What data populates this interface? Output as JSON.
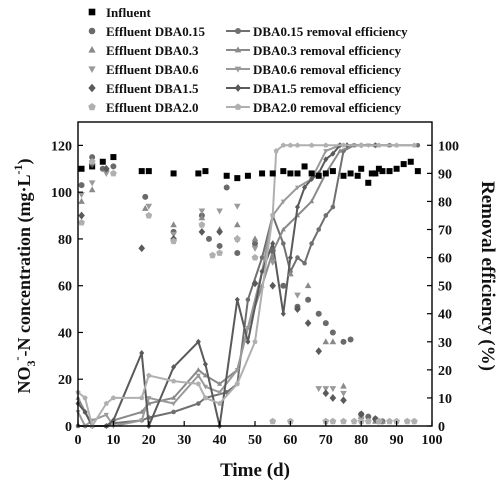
{
  "chart_data": {
    "type": "scatter",
    "title": "",
    "xlabel": "Time (d)",
    "ylabel": "NO3−-N concentration (mg·L−1)",
    "ylabel_parts": {
      "main": "NO",
      "sub1": "3",
      "sup": "-",
      "rest": "-N concentration (mg·L",
      "sup2": "-1",
      "close": ")"
    },
    "y2label": "Removal efficiency (%)",
    "xlim": [
      0,
      100
    ],
    "ylim": [
      0,
      130
    ],
    "y2lim": [
      0,
      108.3
    ],
    "xticks": [
      0,
      10,
      20,
      30,
      40,
      50,
      60,
      70,
      80,
      90,
      100
    ],
    "yticks": [
      0,
      20,
      40,
      60,
      80,
      100,
      120
    ],
    "y2ticks": [
      0,
      10,
      20,
      30,
      40,
      50,
      60,
      70,
      80,
      90,
      100
    ],
    "grid": false,
    "legend_position": "top-left",
    "series": [
      {
        "name": "Influent",
        "axis": "left",
        "kind": "scatter",
        "marker": "square",
        "color": "#000000",
        "x": [
          1,
          4,
          7,
          10,
          18,
          20,
          27,
          34,
          36,
          42,
          45,
          48,
          52,
          55,
          58,
          60,
          62,
          64,
          66,
          68,
          70,
          72,
          75,
          77,
          79,
          80,
          82,
          83,
          84,
          85,
          86,
          88,
          90,
          92,
          94,
          96
        ],
        "y": [
          110,
          111,
          113,
          115,
          109,
          109,
          108,
          108,
          109,
          107,
          106,
          107,
          108,
          108,
          109,
          108,
          108,
          111,
          108,
          107,
          108,
          109,
          107,
          108,
          107,
          110,
          104,
          108,
          108,
          110,
          109,
          109,
          110,
          112,
          113,
          109
        ]
      },
      {
        "name": "Effluent DBA0.15",
        "axis": "left",
        "kind": "scatter",
        "marker": "circle",
        "color": "#6a6a6a",
        "x": [
          1,
          4,
          7,
          10,
          19,
          27,
          35,
          37,
          40,
          42,
          45,
          50,
          55,
          58,
          62,
          65,
          68,
          70,
          72,
          75,
          77,
          80,
          82,
          84,
          86
        ],
        "y": [
          103,
          115,
          110,
          111,
          98,
          83,
          90,
          80,
          77,
          102,
          74,
          78,
          75,
          60,
          51,
          54,
          48,
          44,
          40,
          36,
          37,
          5,
          4,
          3,
          2
        ]
      },
      {
        "name": "Effluent DBA0.3",
        "axis": "left",
        "kind": "scatter",
        "marker": "triangle-up",
        "color": "#8a8a8a",
        "x": [
          1,
          4,
          8,
          19,
          27,
          35,
          40,
          45,
          50,
          55,
          60,
          65,
          70,
          72,
          75,
          80,
          84,
          86
        ],
        "y": [
          96,
          101,
          110,
          93,
          86,
          89,
          84,
          86,
          80,
          72,
          65,
          60,
          36,
          36,
          17,
          4,
          2,
          2
        ]
      },
      {
        "name": "Effluent DBA0.6",
        "axis": "left",
        "kind": "scatter",
        "marker": "triangle-down",
        "color": "#9a9a9a",
        "x": [
          1,
          4,
          8,
          20,
          27,
          35,
          40,
          45,
          50,
          55,
          62,
          68,
          70,
          72,
          75,
          80,
          85
        ],
        "y": [
          99,
          104,
          108,
          94,
          82,
          92,
          92,
          94,
          76,
          70,
          56,
          16,
          16,
          16,
          14,
          3,
          2
        ]
      },
      {
        "name": "Effluent DBA1.5",
        "axis": "left",
        "kind": "scatter",
        "marker": "diamond",
        "color": "#5a5a5a",
        "x": [
          1,
          4,
          8,
          18,
          27,
          35,
          40,
          45,
          50,
          55,
          62,
          65,
          68,
          70,
          72,
          75,
          80,
          84
        ],
        "y": [
          90,
          112,
          110,
          76,
          80,
          83,
          83,
          80,
          61,
          60,
          50,
          44,
          32,
          14,
          12,
          11,
          5,
          3
        ]
      },
      {
        "name": "Effluent DBA2.0",
        "axis": "left",
        "kind": "scatter",
        "marker": "pentagon",
        "color": "#b0b0b0",
        "x": [
          1,
          4,
          10,
          20,
          27,
          35,
          38,
          40,
          45,
          50,
          55,
          60,
          70,
          72,
          75,
          78,
          80,
          82,
          85,
          88,
          90,
          93,
          95
        ],
        "y": [
          87,
          113,
          108,
          90,
          79,
          86,
          73,
          74,
          80,
          72,
          2,
          2,
          2,
          2,
          2,
          2,
          2,
          2,
          2,
          2,
          2,
          2,
          2
        ]
      },
      {
        "name": "DBA0.15 removal efficiency",
        "axis": "right",
        "kind": "line",
        "marker": "circle",
        "color": "#707070",
        "x": [
          0,
          2,
          4,
          8,
          10,
          18,
          20,
          27,
          34,
          36,
          42,
          45,
          48,
          52,
          55,
          58,
          60,
          62,
          64,
          66,
          68,
          70,
          72,
          75,
          78,
          80,
          84,
          88,
          96
        ],
        "y": [
          0,
          0,
          0,
          0,
          1,
          2,
          3,
          5,
          8,
          10,
          12,
          15,
          45,
          60,
          75,
          65,
          55,
          60,
          58,
          65,
          70,
          75,
          78,
          98,
          100,
          100,
          100,
          100,
          100
        ]
      },
      {
        "name": "DBA0.3 removal efficiency",
        "axis": "right",
        "kind": "line",
        "marker": "triangle-up",
        "color": "#8a8a8a",
        "x": [
          0,
          2,
          4,
          8,
          10,
          18,
          20,
          27,
          34,
          36,
          40,
          45,
          48,
          52,
          55,
          58,
          62,
          66,
          70,
          74,
          78,
          84,
          88
        ],
        "y": [
          10,
          5,
          0,
          0,
          2,
          5,
          8,
          10,
          20,
          18,
          15,
          20,
          35,
          50,
          62,
          70,
          75,
          80,
          90,
          98,
          100,
          100,
          100
        ]
      },
      {
        "name": "DBA0.6 removal efficiency",
        "axis": "right",
        "kind": "line",
        "marker": "triangle-down",
        "color": "#9a9a9a",
        "x": [
          0,
          2,
          4,
          8,
          10,
          18,
          20,
          27,
          34,
          36,
          40,
          45,
          48,
          52,
          55,
          58,
          62,
          66,
          70,
          74,
          78,
          82
        ],
        "y": [
          5,
          0,
          2,
          4,
          0,
          2,
          10,
          8,
          18,
          14,
          12,
          20,
          35,
          55,
          75,
          80,
          85,
          88,
          98,
          100,
          100,
          100
        ]
      },
      {
        "name": "DBA1.5 removal efficiency",
        "axis": "right",
        "kind": "line",
        "marker": "diamond",
        "color": "#5a5a5a",
        "x": [
          0,
          2,
          4,
          8,
          10,
          18,
          20,
          27,
          34,
          36,
          40,
          45,
          48,
          52,
          55,
          58,
          60,
          62,
          64,
          66,
          68,
          70,
          72,
          74,
          76,
          80,
          84
        ],
        "y": [
          8,
          5,
          0,
          0,
          2,
          26,
          0,
          21,
          30,
          22,
          0,
          45,
          30,
          55,
          65,
          40,
          60,
          78,
          85,
          88,
          90,
          95,
          97,
          100,
          100,
          100,
          100
        ]
      },
      {
        "name": "DBA2.0 removal efficiency",
        "axis": "right",
        "kind": "line",
        "marker": "pentagon",
        "color": "#b0b0b0",
        "x": [
          0,
          2,
          4,
          8,
          10,
          18,
          20,
          27,
          34,
          36,
          40,
          45,
          50,
          55,
          56,
          58,
          60,
          62,
          66,
          70,
          75,
          80,
          85,
          90,
          95
        ],
        "y": [
          12,
          10,
          0,
          8,
          10,
          10,
          18,
          16,
          15,
          10,
          8,
          15,
          30,
          75,
          98,
          100,
          100,
          100,
          100,
          100,
          100,
          100,
          100,
          100,
          100
        ]
      }
    ]
  }
}
